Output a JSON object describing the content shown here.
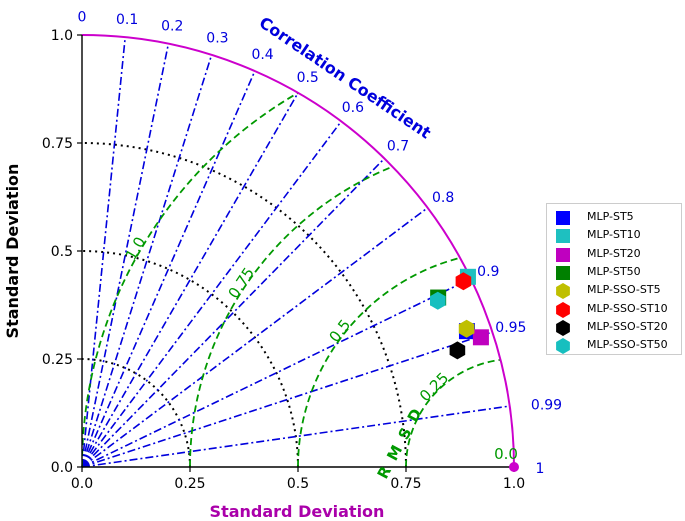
{
  "chart_data": {
    "type": "scatter",
    "subtype": "taylor-diagram",
    "title": "",
    "xlabel": "Standard Deviation",
    "ylabel": "Standard Deviation",
    "arc_label": "Correlation Coefficient",
    "rmsd_label": "RMSD",
    "std_range": [
      0,
      1.0
    ],
    "x_ticks": [
      "0.0",
      "0.25",
      "0.5",
      "0.75",
      "1.0"
    ],
    "y_ticks": [
      "0.0",
      "0.25",
      "0.5",
      "0.75",
      "1.0"
    ],
    "correlation_ticks": [
      {
        "value": 0,
        "label": "0"
      },
      {
        "value": 0.1,
        "label": "0.1"
      },
      {
        "value": 0.2,
        "label": "0.2"
      },
      {
        "value": 0.3,
        "label": "0.3"
      },
      {
        "value": 0.4,
        "label": "0.4"
      },
      {
        "value": 0.5,
        "label": "0.5"
      },
      {
        "value": 0.6,
        "label": "0.6"
      },
      {
        "value": 0.7,
        "label": "0.7"
      },
      {
        "value": 0.8,
        "label": "0.8"
      },
      {
        "value": 0.9,
        "label": "0.9"
      },
      {
        "value": 0.95,
        "label": "0.95"
      },
      {
        "value": 0.99,
        "label": "0.99"
      },
      {
        "value": 1.0,
        "label": "1"
      }
    ],
    "std_contours": [
      0.25,
      0.5,
      0.75
    ],
    "rmsd_contours": [
      {
        "value": 0.25,
        "label": "0.25"
      },
      {
        "value": 0.5,
        "label": "0.5"
      },
      {
        "value": 0.75,
        "label": "0.75"
      },
      {
        "value": 1.0,
        "label": "1.0"
      }
    ],
    "rmsd_zero_label": "0.0",
    "reference": {
      "std": 1.0,
      "color": "#cc00cc"
    },
    "series": [
      {
        "name": "MLP-ST5",
        "marker": "square",
        "color": "#0000ff",
        "std": 0.945,
        "corr": 0.943
      },
      {
        "name": "MLP-ST10",
        "marker": "square",
        "color": "#1ec0c0",
        "std": 0.996,
        "corr": 0.897
      },
      {
        "name": "MLP-ST20",
        "marker": "square",
        "color": "#bf00bf",
        "std": 0.971,
        "corr": 0.951
      },
      {
        "name": "MLP-ST50",
        "marker": "square",
        "color": "#008000",
        "std": 0.913,
        "corr": 0.903
      },
      {
        "name": "MLP-SSO-ST5",
        "marker": "hexagon",
        "color": "#bfbf00",
        "std": 0.946,
        "corr": 0.941
      },
      {
        "name": "MLP-SSO-ST10",
        "marker": "hexagon",
        "color": "#ff0000",
        "std": 0.982,
        "corr": 0.899
      },
      {
        "name": "MLP-SSO-ST20",
        "marker": "hexagon",
        "color": "#000000",
        "std": 0.91,
        "corr": 0.955
      },
      {
        "name": "MLP-SSO-ST50",
        "marker": "hexagon",
        "color": "#17bfbf",
        "std": 0.909,
        "corr": 0.906
      }
    ],
    "colors": {
      "outer_arc": "#cc00cc",
      "correlation_lines": "#0000dd",
      "rmsd_contours": "#009900",
      "std_contours": "#000000",
      "axis_label": "#aa00aa"
    },
    "legend_placement": "right",
    "grid": true
  }
}
